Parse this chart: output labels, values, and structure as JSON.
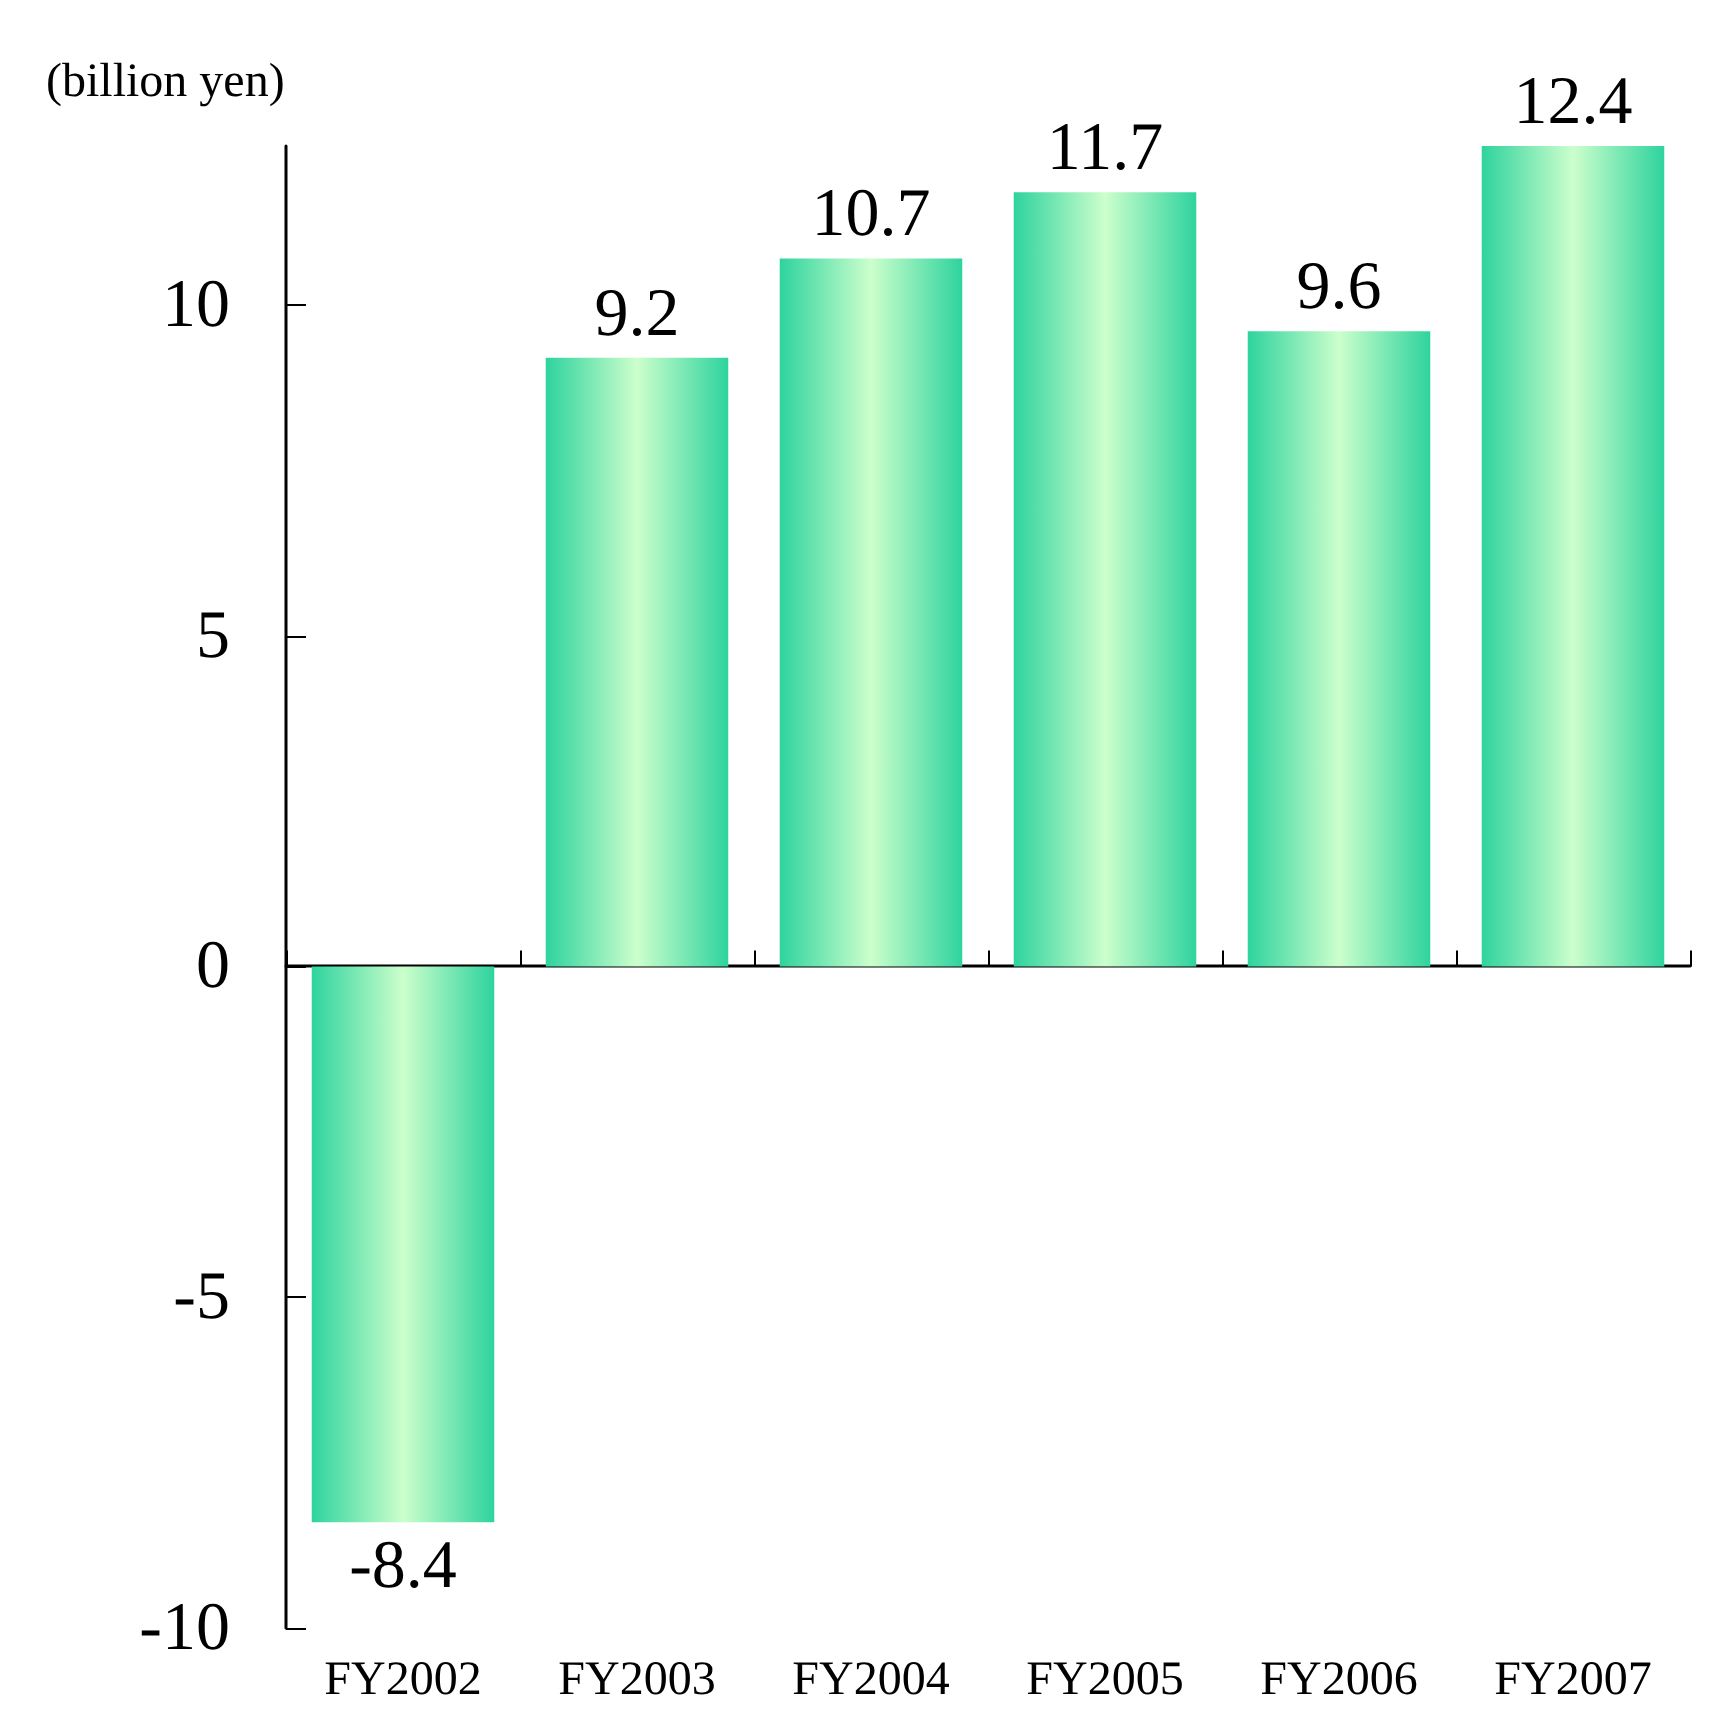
{
  "chart_data": {
    "type": "bar",
    "ylabel": "(billion yen)",
    "categories": [
      "FY2002",
      "FY2003",
      "FY2004",
      "FY2005",
      "FY2006",
      "FY2007"
    ],
    "values": [
      -8.4,
      9.2,
      10.7,
      11.7,
      9.6,
      12.4
    ],
    "color": "#2ed39e",
    "ylim": [
      -10,
      12.4
    ],
    "yticks": [
      -10,
      -5,
      0,
      5,
      10
    ],
    "data_labels": true
  }
}
